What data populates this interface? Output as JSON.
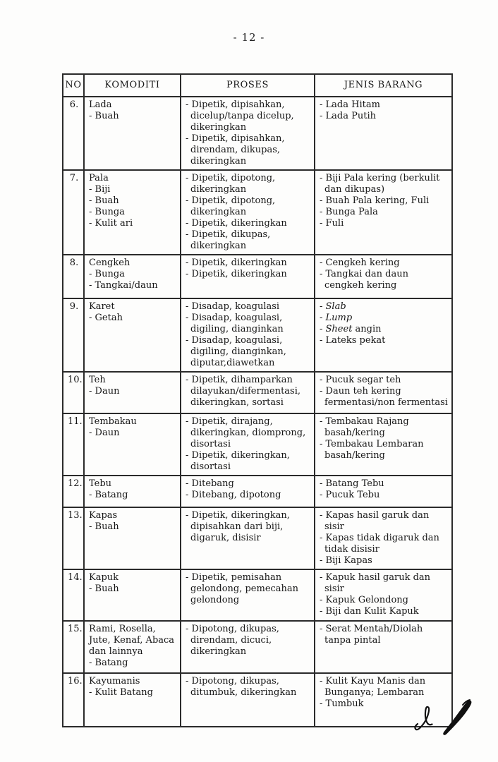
{
  "page": {
    "number_label": "- 12 -"
  },
  "icons": {
    "signature": "handwritten-initials-icon"
  },
  "table": {
    "headers": [
      "NO",
      "KOMODITI",
      "PROSES",
      "JENIS BARANG"
    ],
    "rows": [
      {
        "no": "6.",
        "komoditi": [
          "Lada",
          "- Buah"
        ],
        "proses": [
          "- Dipetik, dipisahkan, dicelup/tanpa dicelup, dikeringkan",
          "- Dipetik, dipisahkan, direndam, dikupas, dikeringkan"
        ],
        "jenis": [
          "- Lada Hitam",
          "- Lada Putih"
        ]
      },
      {
        "no": "7.",
        "komoditi": [
          "Pala",
          "- Biji",
          "- Buah",
          "- Bunga",
          "- Kulit ari"
        ],
        "proses": [
          "- Dipetik, dipotong, dikeringkan",
          "- Dipetik, dipotong, dikeringkan",
          "- Dipetik, dikeringkan",
          "- Dipetik, dikupas, dikeringkan"
        ],
        "jenis": [
          "- Biji Pala kering (berkulit dan dikupas)",
          "- Buah Pala kering, Fuli",
          "- Bunga Pala",
          "- Fuli"
        ]
      },
      {
        "no": "8.",
        "komoditi": [
          "Cengkeh",
          "- Bunga",
          "- Tangkai/daun"
        ],
        "proses": [
          "- Dipetik, dikeringkan",
          "- Dipetik, dikeringkan"
        ],
        "jenis": [
          "- Cengkeh kering",
          "- Tangkai dan daun cengkeh kering"
        ]
      },
      {
        "no": "9.",
        "komoditi": [
          "Karet",
          "- Getah"
        ],
        "proses": [
          "- Disadap, koagulasi",
          "- Disadap, koagulasi, digiling, dianginkan",
          "- Disadap, koagulasi, digiling, dianginkan, diputar,diawetkan"
        ],
        "jenis": [
          "- *Slab*",
          "- *Lump*",
          "- *Sheet* angin",
          "- Lateks pekat"
        ]
      },
      {
        "no": "10.",
        "komoditi": [
          "Teh",
          "- Daun"
        ],
        "proses": [
          "- Dipetik, dihamparkan dilayukan/difermentasi, dikeringkan, sortasi"
        ],
        "jenis": [
          "- Pucuk segar teh",
          "- Daun teh kering fermentasi/non fermentasi"
        ]
      },
      {
        "no": "11.",
        "komoditi": [
          "Tembakau",
          "- Daun"
        ],
        "proses": [
          "- Dipetik, dirajang, dikeringkan, diomprong, disortasi",
          "- Dipetik, dikeringkan, disortasi"
        ],
        "jenis": [
          "- Tembakau Rajang basah/kering",
          "- Tembakau Lembaran basah/kering"
        ]
      },
      {
        "no": "12.",
        "komoditi": [
          "Tebu",
          "- Batang"
        ],
        "proses": [
          "- Ditebang",
          "- Ditebang, dipotong"
        ],
        "jenis": [
          "- Batang Tebu",
          "- Pucuk Tebu"
        ]
      },
      {
        "no": "13.",
        "komoditi": [
          "Kapas",
          "- Buah"
        ],
        "proses": [
          "- Dipetik, dikeringkan, dipisahkan dari biji, digaruk, disisir"
        ],
        "jenis": [
          "- Kapas hasil garuk dan sisir",
          "- Kapas tidak digaruk dan tidak disisir",
          "- Biji Kapas"
        ]
      },
      {
        "no": "14.",
        "komoditi": [
          "Kapuk",
          "- Buah"
        ],
        "proses": [
          "- Dipetik, pemisahan gelondong, pemecahan gelondong"
        ],
        "jenis": [
          "- Kapuk hasil garuk dan sisir",
          "- Kapuk Gelondong",
          "- Biji dan Kulit Kapuk"
        ]
      },
      {
        "no": "15.",
        "komoditi": [
          "Rami, Rosella, Jute, Kenaf, Abaca dan lainnya",
          "- Batang"
        ],
        "proses": [
          "- Dipotong, dikupas, direndam, dicuci, dikeringkan"
        ],
        "jenis": [
          "- Serat Mentah/Diolah tanpa pintal"
        ]
      },
      {
        "no": "16.",
        "komoditi": [
          "Kayumanis",
          "- Kulit Batang"
        ],
        "proses": [
          "- Dipotong, dikupas, ditumbuk, dikeringkan"
        ],
        "jenis": [
          "- Kulit Kayu Manis dan Bunganya; Lembaran",
          "- Tumbuk"
        ]
      }
    ]
  }
}
